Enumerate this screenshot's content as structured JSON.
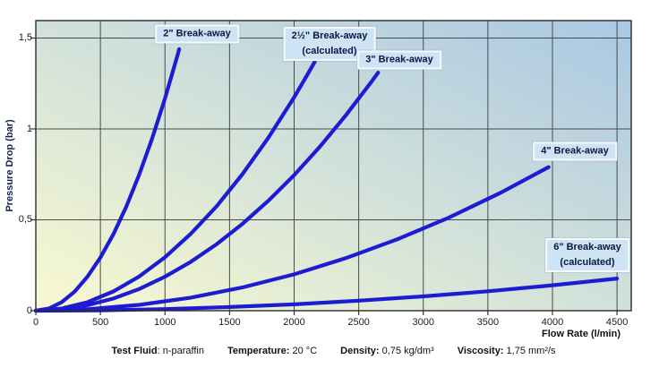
{
  "chart_data": {
    "type": "line",
    "title": "",
    "xlabel": "Flow Rate (l/min)",
    "ylabel": "Pressure Drop (bar)",
    "xlim": [
      0,
      4610
    ],
    "ylim": [
      0,
      1.596
    ],
    "grid": true,
    "x_ticks": [
      0,
      500,
      1000,
      1500,
      2000,
      2500,
      3000,
      3500,
      4000,
      4500
    ],
    "x_tick_labels": [
      "0",
      "500",
      "1000",
      "1500",
      "2000",
      "2500",
      "3000",
      "3500",
      "4000",
      "4500"
    ],
    "y_ticks": [
      0,
      0.5,
      1,
      1.5
    ],
    "y_tick_labels": [
      "0",
      "0,5",
      "1",
      "1,5"
    ],
    "colors": {
      "curve": "#1c1cd2",
      "grid": "#4a4a4a",
      "border": "#2b2b2b",
      "tick": "#333333",
      "background_bottom_left": "#f9f9d0",
      "background_top_right": "#a9c8e4",
      "annotation_box": "#cee3f4",
      "annotation_border": "#f5f9fd",
      "annotation_text": "#0a1844"
    },
    "series": [
      {
        "name": "2\" Break-away",
        "points": [
          [
            0,
            0
          ],
          [
            100,
            0.012
          ],
          [
            200,
            0.047
          ],
          [
            300,
            0.105
          ],
          [
            400,
            0.187
          ],
          [
            500,
            0.292
          ],
          [
            600,
            0.42
          ],
          [
            700,
            0.572
          ],
          [
            800,
            0.748
          ],
          [
            900,
            0.946
          ],
          [
            1000,
            1.168
          ],
          [
            1100,
            1.413
          ],
          [
            1110,
            1.439
          ]
        ]
      },
      {
        "name": "2½\" Break-away (calculated)",
        "points": [
          [
            0,
            0
          ],
          [
            200,
            0.012
          ],
          [
            400,
            0.047
          ],
          [
            600,
            0.106
          ],
          [
            800,
            0.188
          ],
          [
            1000,
            0.294
          ],
          [
            1200,
            0.423
          ],
          [
            1400,
            0.575
          ],
          [
            1600,
            0.751
          ],
          [
            1800,
            0.951
          ],
          [
            2000,
            1.174
          ],
          [
            2100,
            1.295
          ],
          [
            2160,
            1.37
          ]
        ]
      },
      {
        "name": "3\" Break-away",
        "points": [
          [
            0,
            0
          ],
          [
            200,
            0.007
          ],
          [
            400,
            0.03
          ],
          [
            600,
            0.067
          ],
          [
            800,
            0.119
          ],
          [
            1000,
            0.187
          ],
          [
            1200,
            0.269
          ],
          [
            1400,
            0.366
          ],
          [
            1600,
            0.478
          ],
          [
            1800,
            0.605
          ],
          [
            2000,
            0.746
          ],
          [
            2200,
            0.903
          ],
          [
            2400,
            1.075
          ],
          [
            2600,
            1.261
          ],
          [
            2650,
            1.31
          ]
        ]
      },
      {
        "name": "4\" Break-away",
        "points": [
          [
            0,
            0
          ],
          [
            400,
            0.008
          ],
          [
            800,
            0.032
          ],
          [
            1200,
            0.072
          ],
          [
            1600,
            0.128
          ],
          [
            2000,
            0.2
          ],
          [
            2400,
            0.289
          ],
          [
            2800,
            0.393
          ],
          [
            3200,
            0.513
          ],
          [
            3600,
            0.649
          ],
          [
            3970,
            0.79
          ]
        ]
      },
      {
        "name": "6\" Break-away (calculated)",
        "points": [
          [
            0,
            0
          ],
          [
            500,
            0.002
          ],
          [
            1000,
            0.009
          ],
          [
            1500,
            0.02
          ],
          [
            2000,
            0.035
          ],
          [
            2500,
            0.055
          ],
          [
            3000,
            0.079
          ],
          [
            3500,
            0.107
          ],
          [
            4000,
            0.14
          ],
          [
            4500,
            0.177
          ]
        ]
      }
    ],
    "annotations": [
      {
        "lines": [
          "2\" Break-away"
        ],
        "q": 1250,
        "p": 1.52
      },
      {
        "lines": [
          "2½\" Break-away",
          "(calculated)"
        ],
        "q": 2275,
        "p": 1.47
      },
      {
        "lines": [
          "3\" Break-away"
        ],
        "q": 2815,
        "p": 1.38
      },
      {
        "lines": [
          "4\" Break-away"
        ],
        "q": 4175,
        "p": 0.875
      },
      {
        "lines": [
          "6\" Break-away",
          "(calculated)"
        ],
        "q": 4270,
        "p": 0.305
      }
    ]
  },
  "footnote": {
    "items": [
      {
        "label": "Test Fluid",
        "value": ": n-paraffin"
      },
      {
        "label": "Temperature:",
        "value": " 20 °C"
      },
      {
        "label": "Density:",
        "value": " 0,75 kg/dm³"
      },
      {
        "label": "Viscosity:",
        "value": " 1,75 mm²/s"
      }
    ]
  }
}
